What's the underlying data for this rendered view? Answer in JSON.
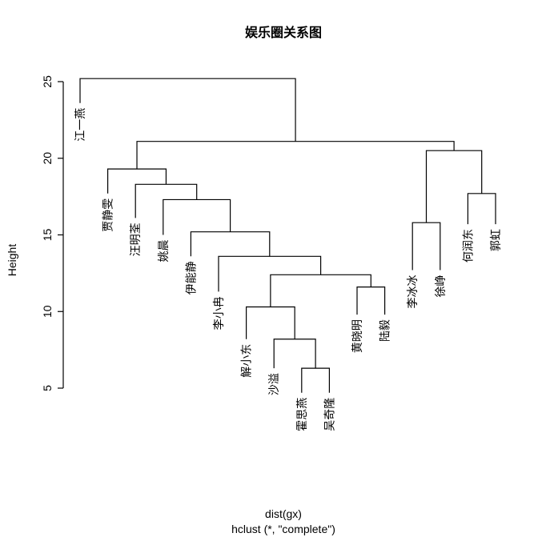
{
  "chart_data": {
    "type": "dendrogram",
    "title": "娱乐圈关系图",
    "ylabel": "Height",
    "xlabel": "dist(gx)",
    "sublabel": "hclust (*, \"complete\")",
    "ylim": [
      5,
      25
    ],
    "yticks": [
      5,
      10,
      15,
      20,
      25
    ],
    "leaves": [
      {
        "label": "江一燕",
        "height": 23.6
      },
      {
        "label": "贾静雯",
        "height": 17.7
      },
      {
        "label": "汪明荃",
        "height": 16.1
      },
      {
        "label": "姚晨",
        "height": 15.0
      },
      {
        "label": "伊能静",
        "height": 13.6
      },
      {
        "label": "李小冉",
        "height": 11.3
      },
      {
        "label": "解小东",
        "height": 8.2
      },
      {
        "label": "沙溢",
        "height": 6.3
      },
      {
        "label": "霍思燕",
        "height": 4.7
      },
      {
        "label": "吴奇隆",
        "height": 4.7
      },
      {
        "label": "黄晓明",
        "height": 9.8
      },
      {
        "label": "陆毅",
        "height": 9.8
      },
      {
        "label": "李冰冰",
        "height": 12.7
      },
      {
        "label": "徐峥",
        "height": 12.7
      },
      {
        "label": "何润东",
        "height": 15.7
      },
      {
        "label": "郭虹",
        "height": 15.7
      }
    ],
    "merges": [
      {
        "a": 8,
        "b": 9,
        "height": 6.3
      },
      {
        "a": 7,
        "b": "m0",
        "height": 8.2
      },
      {
        "a": 6,
        "b": "m1",
        "height": 10.3
      },
      {
        "a": 10,
        "b": 11,
        "height": 11.6
      },
      {
        "a": "m2",
        "b": "m3",
        "height": 12.4
      },
      {
        "a": 5,
        "b": "m4",
        "height": 13.6
      },
      {
        "a": 4,
        "b": "m5",
        "height": 15.2
      },
      {
        "a": 3,
        "b": "m6",
        "height": 17.3
      },
      {
        "a": 2,
        "b": "m7",
        "height": 18.3
      },
      {
        "a": 1,
        "b": "m8",
        "height": 19.3
      },
      {
        "a": 12,
        "b": 13,
        "height": 15.8
      },
      {
        "a": 14,
        "b": 15,
        "height": 17.7
      },
      {
        "a": "m10",
        "b": "m11",
        "height": 20.5
      },
      {
        "a": "m9",
        "b": "m12",
        "height": 21.1
      },
      {
        "a": 0,
        "b": "m13",
        "height": 25.2
      }
    ]
  }
}
